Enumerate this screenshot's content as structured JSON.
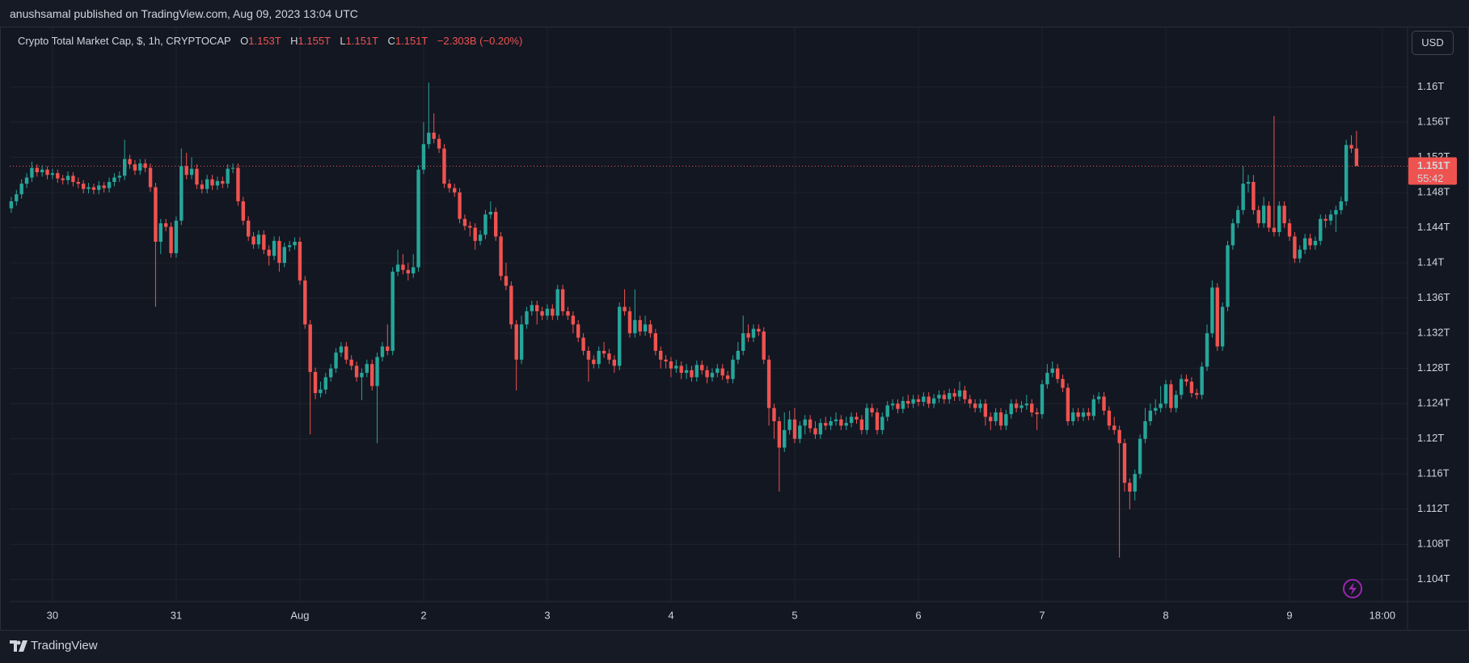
{
  "chart_data": {
    "type": "candlestick",
    "published": "anushsamal published on TradingView.com, Aug 09, 2023 13:04 UTC",
    "title": "Crypto Total Market Cap, $, 1h, CRYPTOCAP",
    "ohlc_legend": [
      {
        "key": "O",
        "value": "1.153T"
      },
      {
        "key": "H",
        "value": "1.155T"
      },
      {
        "key": "L",
        "value": "1.151T"
      },
      {
        "key": "C",
        "value": "1.151T"
      }
    ],
    "change": "−2.303B (−0.20%)",
    "currency": "USD",
    "brand": "TradingView",
    "colors": {
      "up": "#26a69a",
      "down": "#ef5350"
    },
    "grid": true,
    "last_price": {
      "value": 1.151,
      "label": "1.151T"
    },
    "countdown": "55:42",
    "xlim": [
      -0.3,
      270.9
    ],
    "xticks": [
      {
        "value": 8,
        "label": "30"
      },
      {
        "value": 32,
        "label": "31"
      },
      {
        "value": 56,
        "label": "Aug"
      },
      {
        "value": 80,
        "label": "2"
      },
      {
        "value": 104,
        "label": "3"
      },
      {
        "value": 128,
        "label": "4"
      },
      {
        "value": 152,
        "label": "5"
      },
      {
        "value": 176,
        "label": "6"
      },
      {
        "value": 200,
        "label": "7"
      },
      {
        "value": 224,
        "label": "8"
      },
      {
        "value": 248,
        "label": "9"
      },
      {
        "value": 266,
        "label": "18:00"
      }
    ],
    "ylim": [
      1.1015,
      1.164
    ],
    "yticks": [
      {
        "value": 1.104,
        "label": "1.104T"
      },
      {
        "value": 1.108,
        "label": "1.108T"
      },
      {
        "value": 1.112,
        "label": "1.112T"
      },
      {
        "value": 1.116,
        "label": "1.116T"
      },
      {
        "value": 1.12,
        "label": "1.12T"
      },
      {
        "value": 1.124,
        "label": "1.124T"
      },
      {
        "value": 1.128,
        "label": "1.128T"
      },
      {
        "value": 1.132,
        "label": "1.132T"
      },
      {
        "value": 1.136,
        "label": "1.136T"
      },
      {
        "value": 1.14,
        "label": "1.14T"
      },
      {
        "value": 1.144,
        "label": "1.144T"
      },
      {
        "value": 1.148,
        "label": "1.148T"
      },
      {
        "value": 1.152,
        "label": "1.152T"
      },
      {
        "value": 1.156,
        "label": "1.156T"
      },
      {
        "value": 1.16,
        "label": "1.16T"
      }
    ],
    "open": [
      1.1462,
      1.147,
      1.1478,
      1.149,
      1.1497,
      1.1508,
      1.1503,
      1.1506,
      1.15,
      1.1502,
      1.1496,
      1.1494,
      1.1499,
      1.1492,
      1.149,
      1.1484,
      1.1486,
      1.1483,
      1.1488,
      1.1485,
      1.1492,
      1.1497,
      1.1499,
      1.1518,
      1.1512,
      1.1505,
      1.1513,
      1.1508,
      1.1486,
      1.1424,
      1.1445,
      1.1441,
      1.1411,
      1.1448,
      1.151,
      1.15,
      1.1507,
      1.1489,
      1.1484,
      1.1495,
      1.1488,
      1.1493,
      1.149,
      1.1507,
      1.1508,
      1.147,
      1.1448,
      1.143,
      1.1421,
      1.1432,
      1.1415,
      1.1408,
      1.1425,
      1.14,
      1.1418,
      1.142,
      1.1424,
      1.138,
      1.133,
      1.1276,
      1.1252,
      1.1256,
      1.127,
      1.128,
      1.1298,
      1.1305,
      1.129,
      1.1283,
      1.127,
      1.1275,
      1.1285,
      1.126,
      1.1293,
      1.1305,
      1.13,
      1.139,
      1.1398,
      1.1392,
      1.1388,
      1.1395,
      1.1506,
      1.1535,
      1.1548,
      1.1541,
      1.153,
      1.149,
      1.1485,
      1.148,
      1.145,
      1.1442,
      1.144,
      1.1425,
      1.1432,
      1.1455,
      1.1458,
      1.143,
      1.1385,
      1.1374,
      1.133,
      1.129,
      1.133,
      1.1345,
      1.1352,
      1.1345,
      1.134,
      1.1348,
      1.134,
      1.137,
      1.1345,
      1.134,
      1.133,
      1.1315,
      1.13,
      1.129,
      1.1285,
      1.13,
      1.1297,
      1.129,
      1.1283,
      1.135,
      1.1345,
      1.132,
      1.1335,
      1.1322,
      1.133,
      1.132,
      1.13,
      1.129,
      1.1288,
      1.128,
      1.1283,
      1.1275,
      1.1278,
      1.127,
      1.1284,
      1.1278,
      1.127,
      1.1275,
      1.128,
      1.1272,
      1.1268,
      1.129,
      1.13,
      1.132,
      1.1315,
      1.1325,
      1.1322,
      1.129,
      1.1235,
      1.122,
      1.119,
      1.121,
      1.1222,
      1.12,
      1.1215,
      1.1222,
      1.1212,
      1.1205,
      1.1218,
      1.1215,
      1.122,
      1.1222,
      1.1215,
      1.1218,
      1.1225,
      1.1222,
      1.121,
      1.1235,
      1.123,
      1.121,
      1.1225,
      1.1238,
      1.124,
      1.1234,
      1.1243,
      1.124,
      1.1245,
      1.1242,
      1.1248,
      1.124,
      1.1246,
      1.125,
      1.1245,
      1.1252,
      1.1248,
      1.1255,
      1.1245,
      1.124,
      1.1235,
      1.124,
      1.1225,
      1.122,
      1.123,
      1.1215,
      1.1228,
      1.124,
      1.1235,
      1.1238,
      1.124,
      1.123,
      1.1228,
      1.1262,
      1.1275,
      1.128,
      1.1268,
      1.1258,
      1.122,
      1.123,
      1.1225,
      1.123,
      1.1226,
      1.1245,
      1.1248,
      1.1232,
      1.1215,
      1.121,
      1.1195,
      1.115,
      1.114,
      1.116,
      1.12,
      1.122,
      1.1232,
      1.1235,
      1.124,
      1.1262,
      1.1235,
      1.125,
      1.1268,
      1.1265,
      1.1252,
      1.125,
      1.1282,
      1.132,
      1.1372,
      1.1305,
      1.135,
      1.142,
      1.1445,
      1.146,
      1.149,
      1.1492,
      1.146,
      1.1445,
      1.1465,
      1.144,
      1.1435,
      1.1465,
      1.1445,
      1.143,
      1.1405,
      1.1415,
      1.1428,
      1.142,
      1.1425,
      1.145,
      1.1448,
      1.1455,
      1.146,
      1.147,
      1.1534,
      1.153
    ],
    "high": [
      1.1475,
      1.1483,
      1.1495,
      1.1502,
      1.1515,
      1.1512,
      1.1511,
      1.151,
      1.1507,
      1.1506,
      1.15,
      1.1504,
      1.1503,
      1.1497,
      1.1494,
      1.1491,
      1.149,
      1.1493,
      1.1492,
      1.1497,
      1.1502,
      1.1504,
      1.154,
      1.1523,
      1.1517,
      1.1518,
      1.1518,
      1.1513,
      1.1491,
      1.145,
      1.145,
      1.1446,
      1.1453,
      1.153,
      1.1525,
      1.152,
      1.1512,
      1.1494,
      1.15,
      1.15,
      1.1498,
      1.1498,
      1.1512,
      1.1513,
      1.1513,
      1.1475,
      1.1453,
      1.1435,
      1.1437,
      1.1437,
      1.142,
      1.143,
      1.143,
      1.1423,
      1.1425,
      1.1429,
      1.1429,
      1.1385,
      1.1335,
      1.1281,
      1.1265,
      1.1275,
      1.1285,
      1.1303,
      1.131,
      1.131,
      1.1295,
      1.1288,
      1.128,
      1.129,
      1.129,
      1.1298,
      1.131,
      1.133,
      1.1395,
      1.1415,
      1.141,
      1.14,
      1.141,
      1.1511,
      1.156,
      1.1605,
      1.157,
      1.1546,
      1.1535,
      1.1495,
      1.149,
      1.1485,
      1.1455,
      1.1447,
      1.1445,
      1.1437,
      1.146,
      1.147,
      1.1463,
      1.1435,
      1.14,
      1.1379,
      1.1335,
      1.134,
      1.135,
      1.1357,
      1.1357,
      1.135,
      1.1353,
      1.1353,
      1.1375,
      1.1375,
      1.135,
      1.1345,
      1.1335,
      1.132,
      1.1305,
      1.1295,
      1.1305,
      1.131,
      1.1302,
      1.1295,
      1.1355,
      1.137,
      1.135,
      1.137,
      1.134,
      1.134,
      1.1335,
      1.1325,
      1.1305,
      1.1295,
      1.1293,
      1.129,
      1.1288,
      1.1285,
      1.1283,
      1.1289,
      1.1289,
      1.1283,
      1.128,
      1.1285,
      1.1285,
      1.1277,
      1.1295,
      1.131,
      1.134,
      1.133,
      1.133,
      1.133,
      1.1327,
      1.1295,
      1.124,
      1.1225,
      1.123,
      1.1232,
      1.1235,
      1.122,
      1.1227,
      1.1227,
      1.122,
      1.1223,
      1.1225,
      1.1225,
      1.123,
      1.1227,
      1.1225,
      1.123,
      1.123,
      1.1227,
      1.124,
      1.124,
      1.1235,
      1.123,
      1.1243,
      1.1245,
      1.1245,
      1.1248,
      1.125,
      1.125,
      1.125,
      1.1253,
      1.1253,
      1.1251,
      1.1255,
      1.1255,
      1.1257,
      1.1257,
      1.1265,
      1.126,
      1.125,
      1.1245,
      1.1245,
      1.1245,
      1.123,
      1.1235,
      1.1235,
      1.1233,
      1.1245,
      1.1245,
      1.1243,
      1.125,
      1.1245,
      1.1235,
      1.1267,
      1.1285,
      1.1288,
      1.1285,
      1.1273,
      1.1263,
      1.1235,
      1.1235,
      1.1235,
      1.1235,
      1.125,
      1.1253,
      1.1253,
      1.1237,
      1.1225,
      1.1215,
      1.12,
      1.1155,
      1.1165,
      1.1205,
      1.1235,
      1.124,
      1.1245,
      1.126,
      1.1267,
      1.1267,
      1.1255,
      1.1273,
      1.1273,
      1.127,
      1.1257,
      1.1287,
      1.133,
      1.138,
      1.1377,
      1.1355,
      1.1425,
      1.145,
      1.1465,
      1.151,
      1.15,
      1.15,
      1.1465,
      1.1475,
      1.147,
      1.1567,
      1.147,
      1.147,
      1.145,
      1.1435,
      1.142,
      1.1433,
      1.1433,
      1.143,
      1.1455,
      1.1455,
      1.146,
      1.1465,
      1.1475,
      1.154,
      1.1545,
      1.155
    ],
    "low": [
      1.1457,
      1.1465,
      1.1473,
      1.1485,
      1.1492,
      1.1498,
      1.1498,
      1.1495,
      1.1495,
      1.1491,
      1.1489,
      1.1489,
      1.1487,
      1.1485,
      1.1479,
      1.1479,
      1.1478,
      1.1478,
      1.148,
      1.148,
      1.1487,
      1.1492,
      1.1494,
      1.1507,
      1.15,
      1.15,
      1.1503,
      1.1481,
      1.135,
      1.141,
      1.1436,
      1.1406,
      1.1406,
      1.1443,
      1.1495,
      1.1495,
      1.1484,
      1.1479,
      1.1479,
      1.1483,
      1.1483,
      1.1485,
      1.1485,
      1.1502,
      1.1465,
      1.1443,
      1.1425,
      1.1416,
      1.1416,
      1.141,
      1.1397,
      1.1403,
      1.139,
      1.1395,
      1.1413,
      1.1415,
      1.1375,
      1.1325,
      1.1205,
      1.1245,
      1.1247,
      1.1251,
      1.1265,
      1.1275,
      1.1293,
      1.1285,
      1.1278,
      1.1265,
      1.1244,
      1.127,
      1.1255,
      1.1195,
      1.1288,
      1.1295,
      1.1295,
      1.1385,
      1.1387,
      1.138,
      1.1383,
      1.139,
      1.1501,
      1.153,
      1.1536,
      1.1525,
      1.1485,
      1.148,
      1.1475,
      1.1445,
      1.1437,
      1.143,
      1.1415,
      1.142,
      1.1427,
      1.145,
      1.1425,
      1.138,
      1.1369,
      1.1325,
      1.1255,
      1.1285,
      1.1325,
      1.134,
      1.133,
      1.1335,
      1.1335,
      1.1335,
      1.1335,
      1.134,
      1.1335,
      1.132,
      1.131,
      1.1295,
      1.1265,
      1.128,
      1.128,
      1.1292,
      1.1285,
      1.1275,
      1.1278,
      1.134,
      1.1315,
      1.1315,
      1.1317,
      1.1317,
      1.1315,
      1.1295,
      1.128,
      1.128,
      1.127,
      1.1275,
      1.1268,
      1.1268,
      1.1265,
      1.1265,
      1.1273,
      1.1263,
      1.1265,
      1.127,
      1.1267,
      1.1263,
      1.1263,
      1.1285,
      1.1295,
      1.131,
      1.131,
      1.1317,
      1.1285,
      1.1215,
      1.12,
      1.114,
      1.1185,
      1.1205,
      1.1195,
      1.1195,
      1.1205,
      1.1207,
      1.12,
      1.12,
      1.121,
      1.121,
      1.1215,
      1.121,
      1.121,
      1.1213,
      1.1217,
      1.1205,
      1.1205,
      1.1225,
      1.1205,
      1.1205,
      1.122,
      1.1233,
      1.1229,
      1.1229,
      1.1235,
      1.1235,
      1.1237,
      1.1237,
      1.1235,
      1.1235,
      1.1241,
      1.124,
      1.124,
      1.1243,
      1.1243,
      1.124,
      1.1235,
      1.123,
      1.123,
      1.1215,
      1.121,
      1.1215,
      1.121,
      1.121,
      1.1223,
      1.123,
      1.123,
      1.1233,
      1.1225,
      1.121,
      1.1223,
      1.1257,
      1.127,
      1.1263,
      1.1253,
      1.1215,
      1.1215,
      1.122,
      1.122,
      1.1221,
      1.1221,
      1.124,
      1.1227,
      1.121,
      1.1205,
      1.1065,
      1.114,
      1.112,
      1.113,
      1.1155,
      1.1195,
      1.1215,
      1.1227,
      1.123,
      1.1235,
      1.123,
      1.123,
      1.1245,
      1.126,
      1.1247,
      1.1245,
      1.1245,
      1.1277,
      1.1315,
      1.13,
      1.13,
      1.1345,
      1.1415,
      1.144,
      1.1455,
      1.148,
      1.1455,
      1.144,
      1.144,
      1.1435,
      1.143,
      1.143,
      1.144,
      1.1425,
      1.14,
      1.14,
      1.141,
      1.1415,
      1.1415,
      1.142,
      1.144,
      1.1443,
      1.1435,
      1.1455,
      1.1465,
      1.1525,
      1.151
    ],
    "close": [
      1.147,
      1.1478,
      1.149,
      1.1497,
      1.1508,
      1.1503,
      1.1506,
      1.15,
      1.1502,
      1.1496,
      1.1494,
      1.1499,
      1.1492,
      1.149,
      1.1484,
      1.1486,
      1.1483,
      1.1488,
      1.1485,
      1.1492,
      1.1497,
      1.1499,
      1.1518,
      1.1512,
      1.1505,
      1.1513,
      1.1508,
      1.1486,
      1.1424,
      1.1445,
      1.1441,
      1.1411,
      1.1448,
      1.151,
      1.15,
      1.1507,
      1.1489,
      1.1484,
      1.1495,
      1.1488,
      1.1493,
      1.149,
      1.1507,
      1.1508,
      1.147,
      1.1448,
      1.143,
      1.1421,
      1.1432,
      1.1415,
      1.1408,
      1.1425,
      1.14,
      1.1418,
      1.142,
      1.1424,
      1.138,
      1.133,
      1.1276,
      1.1252,
      1.1256,
      1.127,
      1.128,
      1.1298,
      1.1305,
      1.129,
      1.1283,
      1.127,
      1.1275,
      1.1285,
      1.126,
      1.1293,
      1.1305,
      1.13,
      1.139,
      1.1398,
      1.1392,
      1.1388,
      1.1395,
      1.1506,
      1.1535,
      1.1548,
      1.1541,
      1.153,
      1.149,
      1.1485,
      1.148,
      1.145,
      1.1442,
      1.144,
      1.1425,
      1.1432,
      1.1455,
      1.1458,
      1.143,
      1.1385,
      1.1374,
      1.133,
      1.129,
      1.133,
      1.1345,
      1.1352,
      1.1345,
      1.134,
      1.1348,
      1.134,
      1.137,
      1.1345,
      1.134,
      1.133,
      1.1315,
      1.13,
      1.129,
      1.1285,
      1.13,
      1.1297,
      1.129,
      1.1283,
      1.135,
      1.1345,
      1.132,
      1.1335,
      1.1322,
      1.133,
      1.132,
      1.13,
      1.129,
      1.1288,
      1.128,
      1.1283,
      1.1275,
      1.1278,
      1.127,
      1.1284,
      1.1278,
      1.127,
      1.1275,
      1.128,
      1.1272,
      1.1268,
      1.129,
      1.13,
      1.132,
      1.1315,
      1.1325,
      1.1322,
      1.129,
      1.1235,
      1.122,
      1.119,
      1.121,
      1.1222,
      1.12,
      1.1215,
      1.1222,
      1.1212,
      1.1205,
      1.1218,
      1.1215,
      1.122,
      1.1222,
      1.1215,
      1.1218,
      1.1225,
      1.1222,
      1.121,
      1.1235,
      1.123,
      1.121,
      1.1225,
      1.1238,
      1.124,
      1.1234,
      1.1243,
      1.124,
      1.1245,
      1.1242,
      1.1248,
      1.124,
      1.1246,
      1.125,
      1.1245,
      1.1252,
      1.1248,
      1.1255,
      1.1245,
      1.124,
      1.1235,
      1.124,
      1.1225,
      1.122,
      1.123,
      1.1215,
      1.1228,
      1.124,
      1.1235,
      1.1238,
      1.124,
      1.123,
      1.1228,
      1.1262,
      1.1275,
      1.128,
      1.1268,
      1.1258,
      1.122,
      1.123,
      1.1225,
      1.123,
      1.1226,
      1.1245,
      1.1248,
      1.1232,
      1.1215,
      1.121,
      1.1195,
      1.115,
      1.114,
      1.116,
      1.12,
      1.122,
      1.1232,
      1.1235,
      1.124,
      1.1262,
      1.1235,
      1.125,
      1.1268,
      1.1265,
      1.1252,
      1.125,
      1.1282,
      1.132,
      1.1372,
      1.1305,
      1.135,
      1.142,
      1.1445,
      1.146,
      1.149,
      1.1492,
      1.146,
      1.1445,
      1.1465,
      1.144,
      1.1435,
      1.1465,
      1.1445,
      1.143,
      1.1405,
      1.1415,
      1.1428,
      1.142,
      1.1425,
      1.145,
      1.1448,
      1.1455,
      1.146,
      1.147,
      1.1534,
      1.153,
      1.151
    ]
  }
}
